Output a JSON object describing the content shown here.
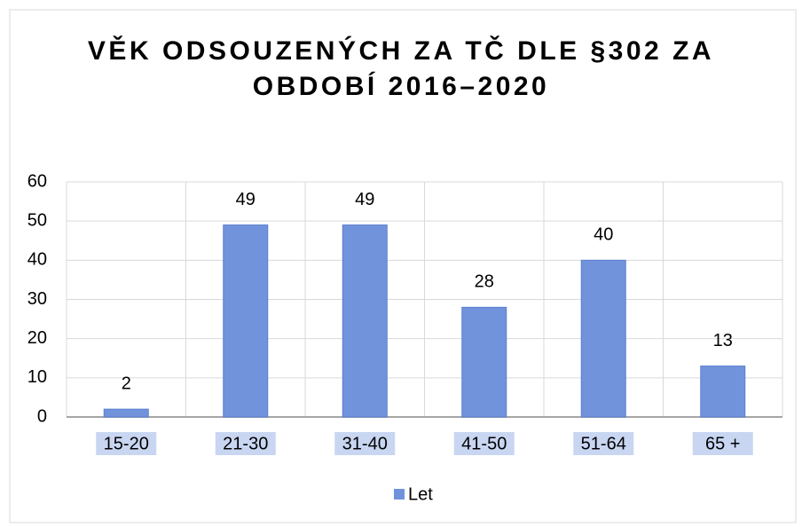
{
  "chart_data": {
    "type": "bar",
    "title": "VĚK ODSOUZENÝCH ZA TČ DLE §302 ZA OBDOBÍ 2016–2020",
    "categories": [
      "15-20",
      "21-30",
      "31-40",
      "41-50",
      "51-64",
      "65 +"
    ],
    "series": [
      {
        "name": "Let",
        "color": "#7193dc",
        "values": [
          2,
          49,
          49,
          28,
          40,
          13
        ]
      }
    ],
    "ylim": [
      0,
      60
    ],
    "yticks": [
      0,
      10,
      20,
      30,
      40,
      50,
      60
    ],
    "grid": true,
    "legend": "bottom"
  }
}
